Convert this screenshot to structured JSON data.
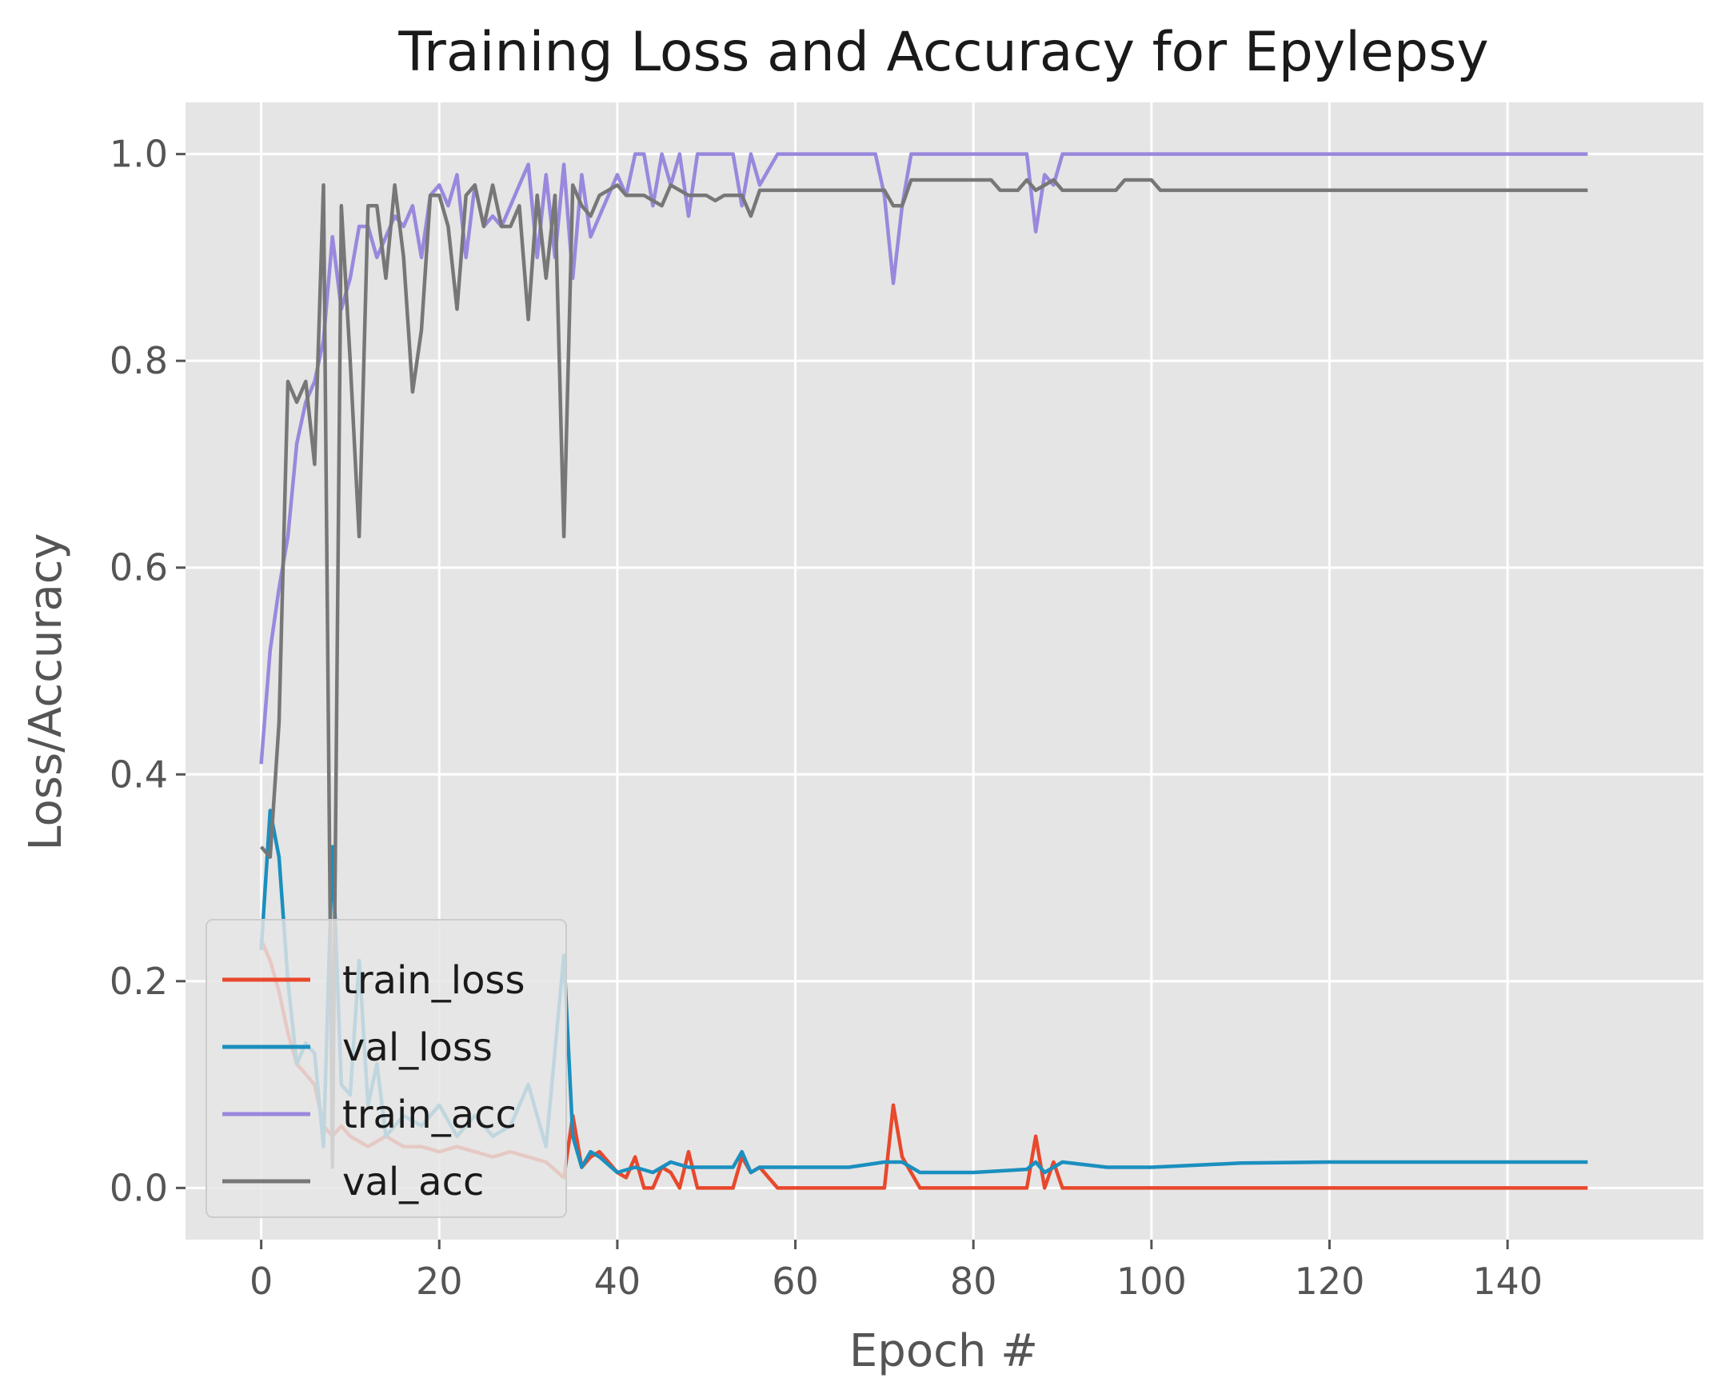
{
  "chart_data": {
    "type": "line",
    "title": "Training Loss and Accuracy for Epylepsy",
    "xlabel": "Epoch #",
    "ylabel": "Loss/Accuracy",
    "xlim": [
      -8.5,
      162
    ],
    "ylim": [
      -0.05,
      1.05
    ],
    "xticks": [
      0,
      20,
      40,
      60,
      80,
      100,
      120,
      140
    ],
    "yticks": [
      0.0,
      0.2,
      0.4,
      0.6,
      0.8,
      1.0
    ],
    "xtick_labels": [
      "0",
      "20",
      "40",
      "60",
      "80",
      "100",
      "120",
      "140"
    ],
    "ytick_labels": [
      "0.0",
      "0.2",
      "0.4",
      "0.6",
      "0.8",
      "1.0"
    ],
    "grid": true,
    "legend_position": "lower-left",
    "colors": {
      "plot_background": "#e5e5e5",
      "grid": "#ffffff",
      "train_loss": "#e8482c",
      "val_loss": "#1b8fbf",
      "train_acc": "#9988dd",
      "val_acc": "#777777"
    },
    "series": [
      {
        "name": "train_loss",
        "points": [
          [
            0,
            0.24
          ],
          [
            1,
            0.22
          ],
          [
            2,
            0.19
          ],
          [
            3,
            0.15
          ],
          [
            4,
            0.12
          ],
          [
            5,
            0.11
          ],
          [
            6,
            0.1
          ],
          [
            7,
            0.06
          ],
          [
            8,
            0.05
          ],
          [
            9,
            0.06
          ],
          [
            10,
            0.05
          ],
          [
            12,
            0.04
          ],
          [
            14,
            0.05
          ],
          [
            16,
            0.04
          ],
          [
            18,
            0.04
          ],
          [
            20,
            0.035
          ],
          [
            22,
            0.04
          ],
          [
            24,
            0.035
          ],
          [
            26,
            0.03
          ],
          [
            28,
            0.035
          ],
          [
            30,
            0.03
          ],
          [
            32,
            0.025
          ],
          [
            34,
            0.01
          ],
          [
            35,
            0.07
          ],
          [
            36,
            0.02
          ],
          [
            37,
            0.03
          ],
          [
            38,
            0.035
          ],
          [
            39,
            0.025
          ],
          [
            40,
            0.015
          ],
          [
            41,
            0.01
          ],
          [
            42,
            0.03
          ],
          [
            43,
            0.0
          ],
          [
            44,
            0.0
          ],
          [
            45,
            0.02
          ],
          [
            46,
            0.015
          ],
          [
            47,
            0.0
          ],
          [
            48,
            0.035
          ],
          [
            49,
            0.0
          ],
          [
            53,
            0.0
          ],
          [
            54,
            0.03
          ],
          [
            55,
            0.015
          ],
          [
            56,
            0.02
          ],
          [
            58,
            0.0
          ],
          [
            70,
            0.0
          ],
          [
            71,
            0.08
          ],
          [
            72,
            0.03
          ],
          [
            74,
            0.0
          ],
          [
            86,
            0.0
          ],
          [
            87,
            0.05
          ],
          [
            88,
            0.0
          ],
          [
            89,
            0.025
          ],
          [
            90,
            0.0
          ],
          [
            149,
            0.0
          ]
        ]
      },
      {
        "name": "val_loss",
        "points": [
          [
            0,
            0.23
          ],
          [
            1,
            0.365
          ],
          [
            2,
            0.32
          ],
          [
            3,
            0.2
          ],
          [
            4,
            0.12
          ],
          [
            5,
            0.14
          ],
          [
            6,
            0.13
          ],
          [
            7,
            0.04
          ],
          [
            8,
            0.33
          ],
          [
            9,
            0.1
          ],
          [
            10,
            0.09
          ],
          [
            11,
            0.22
          ],
          [
            12,
            0.08
          ],
          [
            13,
            0.12
          ],
          [
            14,
            0.05
          ],
          [
            16,
            0.07
          ],
          [
            18,
            0.06
          ],
          [
            20,
            0.08
          ],
          [
            22,
            0.05
          ],
          [
            24,
            0.07
          ],
          [
            26,
            0.05
          ],
          [
            28,
            0.06
          ],
          [
            30,
            0.1
          ],
          [
            32,
            0.04
          ],
          [
            34,
            0.225
          ],
          [
            35,
            0.05
          ],
          [
            36,
            0.02
          ],
          [
            37,
            0.035
          ],
          [
            38,
            0.03
          ],
          [
            40,
            0.015
          ],
          [
            42,
            0.02
          ],
          [
            44,
            0.015
          ],
          [
            46,
            0.025
          ],
          [
            48,
            0.02
          ],
          [
            50,
            0.02
          ],
          [
            53,
            0.02
          ],
          [
            54,
            0.035
          ],
          [
            55,
            0.015
          ],
          [
            56,
            0.02
          ],
          [
            60,
            0.02
          ],
          [
            66,
            0.02
          ],
          [
            70,
            0.025
          ],
          [
            72,
            0.025
          ],
          [
            74,
            0.015
          ],
          [
            80,
            0.015
          ],
          [
            86,
            0.018
          ],
          [
            87,
            0.025
          ],
          [
            88,
            0.015
          ],
          [
            90,
            0.025
          ],
          [
            95,
            0.02
          ],
          [
            100,
            0.02
          ],
          [
            110,
            0.024
          ],
          [
            120,
            0.025
          ],
          [
            149,
            0.025
          ]
        ]
      },
      {
        "name": "train_acc",
        "points": [
          [
            0,
            0.41
          ],
          [
            1,
            0.52
          ],
          [
            2,
            0.58
          ],
          [
            3,
            0.63
          ],
          [
            4,
            0.72
          ],
          [
            5,
            0.76
          ],
          [
            6,
            0.78
          ],
          [
            7,
            0.82
          ],
          [
            8,
            0.92
          ],
          [
            9,
            0.85
          ],
          [
            10,
            0.88
          ],
          [
            11,
            0.93
          ],
          [
            12,
            0.93
          ],
          [
            13,
            0.9
          ],
          [
            14,
            0.92
          ],
          [
            15,
            0.94
          ],
          [
            16,
            0.93
          ],
          [
            17,
            0.95
          ],
          [
            18,
            0.9
          ],
          [
            19,
            0.96
          ],
          [
            20,
            0.97
          ],
          [
            21,
            0.95
          ],
          [
            22,
            0.98
          ],
          [
            23,
            0.9
          ],
          [
            24,
            0.97
          ],
          [
            25,
            0.93
          ],
          [
            26,
            0.94
          ],
          [
            27,
            0.93
          ],
          [
            28,
            0.95
          ],
          [
            29,
            0.97
          ],
          [
            30,
            0.99
          ],
          [
            31,
            0.9
          ],
          [
            32,
            0.98
          ],
          [
            33,
            0.9
          ],
          [
            34,
            0.99
          ],
          [
            35,
            0.88
          ],
          [
            36,
            0.98
          ],
          [
            37,
            0.92
          ],
          [
            38,
            0.94
          ],
          [
            39,
            0.96
          ],
          [
            40,
            0.98
          ],
          [
            41,
            0.96
          ],
          [
            42,
            1.0
          ],
          [
            43,
            1.0
          ],
          [
            44,
            0.95
          ],
          [
            45,
            1.0
          ],
          [
            46,
            0.97
          ],
          [
            47,
            1.0
          ],
          [
            48,
            0.94
          ],
          [
            49,
            1.0
          ],
          [
            52,
            1.0
          ],
          [
            53,
            1.0
          ],
          [
            54,
            0.95
          ],
          [
            55,
            1.0
          ],
          [
            56,
            0.97
          ],
          [
            58,
            1.0
          ],
          [
            69,
            1.0
          ],
          [
            70,
            0.96
          ],
          [
            71,
            0.875
          ],
          [
            72,
            0.95
          ],
          [
            73,
            1.0
          ],
          [
            86,
            1.0
          ],
          [
            87,
            0.925
          ],
          [
            88,
            0.98
          ],
          [
            89,
            0.97
          ],
          [
            90,
            1.0
          ],
          [
            149,
            1.0
          ]
        ]
      },
      {
        "name": "val_acc",
        "points": [
          [
            0,
            0.33
          ],
          [
            1,
            0.32
          ],
          [
            2,
            0.45
          ],
          [
            3,
            0.78
          ],
          [
            4,
            0.76
          ],
          [
            5,
            0.78
          ],
          [
            6,
            0.7
          ],
          [
            7,
            0.97
          ],
          [
            8,
            0.02
          ],
          [
            9,
            0.95
          ],
          [
            10,
            0.8
          ],
          [
            11,
            0.63
          ],
          [
            12,
            0.95
          ],
          [
            13,
            0.95
          ],
          [
            14,
            0.88
          ],
          [
            15,
            0.97
          ],
          [
            16,
            0.9
          ],
          [
            17,
            0.77
          ],
          [
            18,
            0.83
          ],
          [
            19,
            0.96
          ],
          [
            20,
            0.96
          ],
          [
            21,
            0.93
          ],
          [
            22,
            0.85
          ],
          [
            23,
            0.96
          ],
          [
            24,
            0.97
          ],
          [
            25,
            0.93
          ],
          [
            26,
            0.97
          ],
          [
            27,
            0.93
          ],
          [
            28,
            0.93
          ],
          [
            29,
            0.95
          ],
          [
            30,
            0.84
          ],
          [
            31,
            0.96
          ],
          [
            32,
            0.88
          ],
          [
            33,
            0.96
          ],
          [
            34,
            0.63
          ],
          [
            35,
            0.97
          ],
          [
            36,
            0.95
          ],
          [
            37,
            0.94
          ],
          [
            38,
            0.96
          ],
          [
            40,
            0.97
          ],
          [
            41,
            0.96
          ],
          [
            43,
            0.96
          ],
          [
            45,
            0.95
          ],
          [
            46,
            0.97
          ],
          [
            48,
            0.96
          ],
          [
            50,
            0.96
          ],
          [
            51,
            0.955
          ],
          [
            52,
            0.96
          ],
          [
            54,
            0.96
          ],
          [
            55,
            0.94
          ],
          [
            56,
            0.965
          ],
          [
            70,
            0.965
          ],
          [
            71,
            0.95
          ],
          [
            72,
            0.95
          ],
          [
            73,
            0.975
          ],
          [
            82,
            0.975
          ],
          [
            83,
            0.965
          ],
          [
            85,
            0.965
          ],
          [
            86,
            0.975
          ],
          [
            87,
            0.965
          ],
          [
            89,
            0.975
          ],
          [
            90,
            0.965
          ],
          [
            96,
            0.965
          ],
          [
            97,
            0.975
          ],
          [
            100,
            0.975
          ],
          [
            101,
            0.965
          ],
          [
            149,
            0.965
          ]
        ]
      }
    ]
  }
}
